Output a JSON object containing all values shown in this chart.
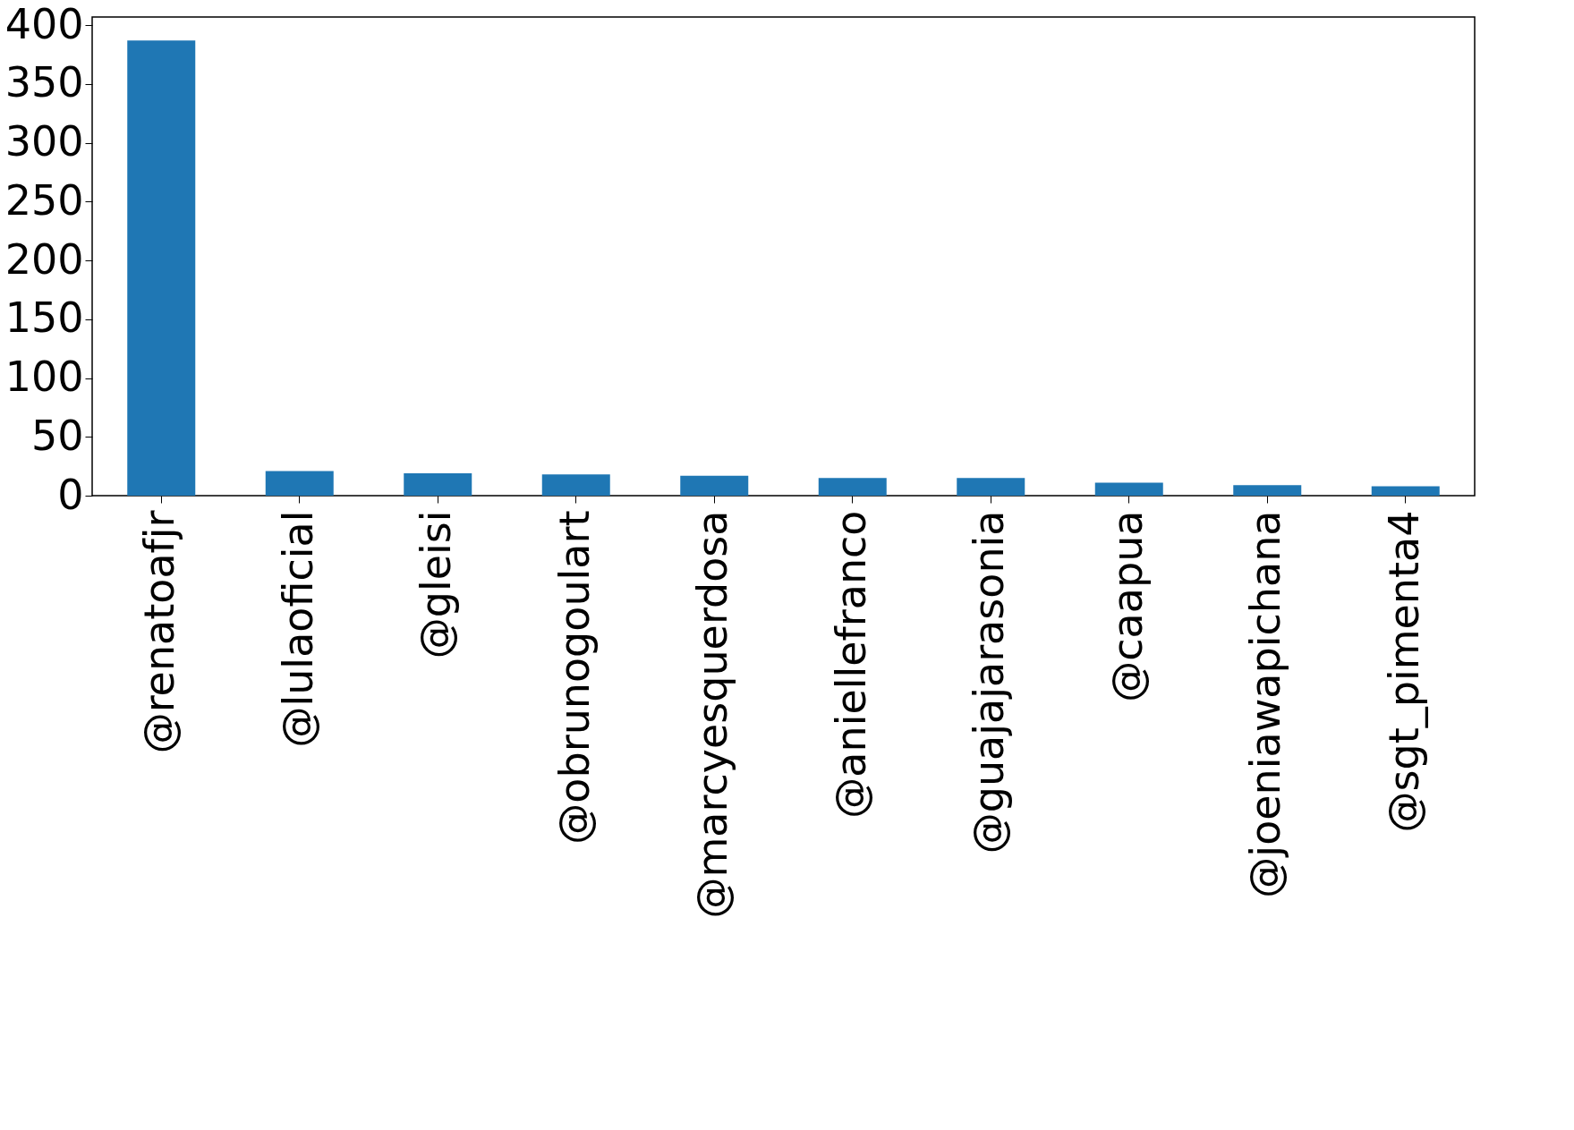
{
  "chart_data": {
    "type": "bar",
    "categories": [
      "@renatoafjr",
      "@lulaoficial",
      "@gleisi",
      "@obrunogoulart",
      "@marcyesquerdosa",
      "@aniellefranco",
      "@guajajarasonia",
      "@caapua",
      "@joeniawapichana",
      "@sgt_pimenta4"
    ],
    "values": [
      387,
      21,
      19,
      18,
      17,
      15,
      15,
      11,
      9,
      8
    ],
    "color": "#1f77b4",
    "ylim": [
      0,
      407
    ],
    "yticks": [
      0,
      50,
      100,
      150,
      200,
      250,
      300,
      350,
      400
    ],
    "grid": false
  }
}
